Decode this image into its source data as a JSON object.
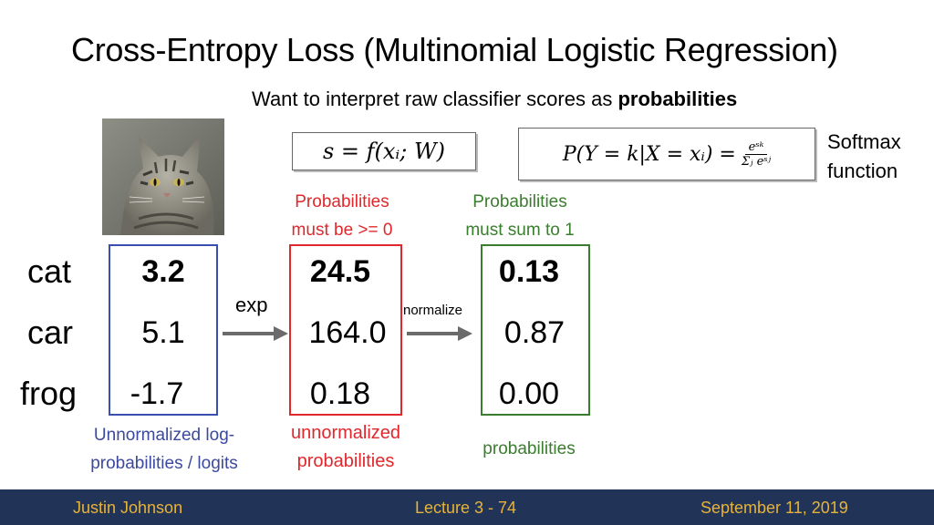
{
  "title": {
    "main": "Cross-Entropy Loss",
    "paren": "(Multinomial Logistic Regression)"
  },
  "subtitle": {
    "prefix": "Want to interpret raw classifier scores as",
    "bold": "probabilities"
  },
  "formula_score": "s = f(xᵢ; W)",
  "formula_softmax": {
    "lhs": "P(Y = k|X = xᵢ) =",
    "num": "eˢᵏ",
    "den": "Σⱼ eˢʲ"
  },
  "softmax_label": [
    "Softmax",
    "function"
  ],
  "notes": {
    "prob_nonneg": [
      "Probabilities",
      "must be >= 0"
    ],
    "prob_sum": [
      "Probabilities",
      "must sum to 1"
    ],
    "logits": [
      "Unnormalized log-",
      "probabilities / logits"
    ],
    "unnorm": [
      "unnormalized",
      "probabilities"
    ],
    "probs": "probabilities"
  },
  "rows": [
    "cat",
    "car",
    "frog"
  ],
  "columns": {
    "scores": [
      "3.2",
      "5.1",
      "-1.7"
    ],
    "exp": [
      "24.5",
      "164.0",
      "0.18"
    ],
    "norm": [
      "0.13",
      "0.87",
      "0.00"
    ]
  },
  "arrows": {
    "exp": "exp",
    "normalize": "normalize"
  },
  "footer": {
    "author": "Justin Johnson",
    "lecture": "Lecture 3 - 74",
    "date": "September 11, 2019"
  },
  "colors": {
    "red": "#e0282c",
    "green": "#3a7d2e",
    "blue": "#3b4fb0",
    "footer_bg": "#213458",
    "footer_text": "#e8b339"
  },
  "image": {
    "subject": "tabby-cat-photo"
  }
}
